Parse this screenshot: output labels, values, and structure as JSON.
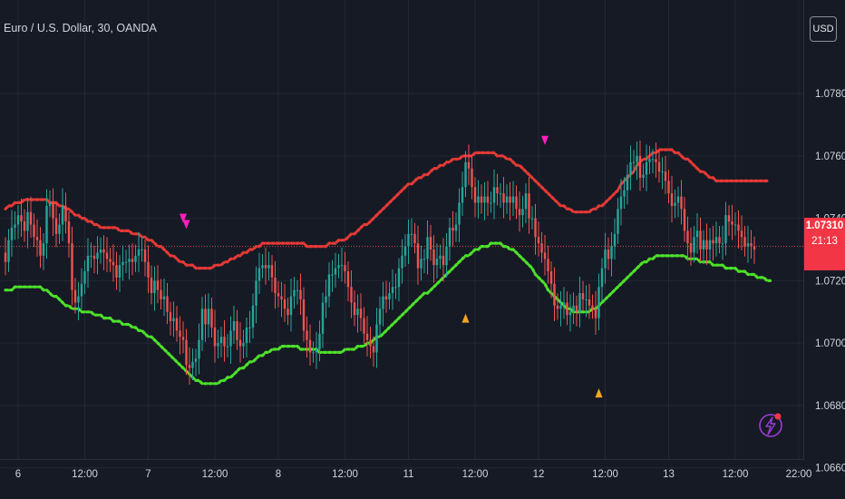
{
  "header": {
    "symbol_title": "Euro / U.S. Dollar, 30, OANDA"
  },
  "currency_button": {
    "label": "USD"
  },
  "price_tag": {
    "price": "1.07310",
    "countdown": "21:13",
    "color": "#f23645"
  },
  "colors": {
    "background": "#161a25",
    "grid": "#232733",
    "up_candle": "#26a69a",
    "down_candle": "#ef5350",
    "upper_band": "#e53935",
    "lower_band": "#4ce02a",
    "buy_signal": "#f5a623",
    "sell_signal": "#ff1fbf",
    "axis_text": "#d1d4dc"
  },
  "icons": {
    "logo": "lightning-bolt-icon"
  },
  "chart_data": {
    "type": "candlestick",
    "title": "Euro / U.S. Dollar, 30, OANDA",
    "ylim": [
      1.065,
      1.081
    ],
    "y_ticks": [
      "1.07800",
      "1.07600",
      "1.07400",
      "1.07200",
      "1.07000",
      "1.06800",
      "1.06600"
    ],
    "y_tick_values": [
      1.078,
      1.076,
      1.074,
      1.072,
      1.07,
      1.068,
      1.066
    ],
    "x_ticks": [
      "6",
      "12:00",
      "7",
      "12:00",
      "8",
      "12:00",
      "11",
      "12:00",
      "12",
      "12:00",
      "13",
      "12:00",
      "22:00"
    ],
    "x_tick_idx": [
      4,
      25,
      45,
      66,
      86,
      107,
      127,
      148,
      168,
      189,
      209,
      230,
      250
    ],
    "grid": true,
    "last_price": 1.0731,
    "close": [
      1.0726,
      1.0733,
      1.0737,
      1.0738,
      1.0741,
      1.0739,
      1.0736,
      1.0742,
      1.0738,
      1.0734,
      1.0733,
      1.0728,
      1.0732,
      1.0744,
      1.0745,
      1.074,
      1.0735,
      1.0738,
      1.0744,
      1.0739,
      1.0732,
      1.0717,
      1.0713,
      1.0715,
      1.0719,
      1.0723,
      1.0728,
      1.0728,
      1.0727,
      1.0729,
      1.073,
      1.0729,
      1.0727,
      1.0726,
      1.0725,
      1.0721,
      1.0725,
      1.0726,
      1.0726,
      1.0727,
      1.0726,
      1.0728,
      1.073,
      1.073,
      1.0726,
      1.0721,
      1.0716,
      1.072,
      1.0717,
      1.0714,
      1.0715,
      1.071,
      1.0707,
      1.0708,
      1.0704,
      1.0702,
      1.0701,
      1.0693,
      1.0692,
      1.0694,
      1.0695,
      1.0701,
      1.0711,
      1.0706,
      1.0711,
      1.0705,
      1.0699,
      1.07,
      1.0702,
      1.0699,
      1.0699,
      1.0704,
      1.0707,
      1.0701,
      1.0699,
      1.07,
      1.0705,
      1.0705,
      1.0712,
      1.072,
      1.0724,
      1.0725,
      1.0724,
      1.0725,
      1.0721,
      1.0716,
      1.0715,
      1.0714,
      1.0711,
      1.0709,
      1.0715,
      1.0717,
      1.0717,
      1.0714,
      1.0704,
      1.0701,
      1.0697,
      1.0697,
      1.0698,
      1.0703,
      1.0713,
      1.0715,
      1.0722,
      1.0722,
      1.0724,
      1.0725,
      1.0725,
      1.0723,
      1.0718,
      1.0713,
      1.0709,
      1.0711,
      1.0708,
      1.0703,
      1.0701,
      1.0699,
      1.0697,
      1.0706,
      1.0711,
      1.0715,
      1.0714,
      1.0716,
      1.0718,
      1.0718,
      1.0724,
      1.0728,
      1.0731,
      1.0735,
      1.0735,
      1.0732,
      1.0724,
      1.0727,
      1.0727,
      1.0734,
      1.073,
      1.0725,
      1.0727,
      1.0728,
      1.0725,
      1.0731,
      1.0737,
      1.0736,
      1.0738,
      1.0745,
      1.075,
      1.0758,
      1.0756,
      1.075,
      1.0745,
      1.0747,
      1.0745,
      1.0747,
      1.0745,
      1.0745,
      1.075,
      1.0748,
      1.0748,
      1.0745,
      1.0747,
      1.0745,
      1.0747,
      1.0743,
      1.0741,
      1.0743,
      1.0748,
      1.074,
      1.074,
      1.0734,
      1.0732,
      1.0729,
      1.0727,
      1.0723,
      1.0719,
      1.0712,
      1.0711,
      1.0712,
      1.0713,
      1.0709,
      1.071,
      1.0712,
      1.071,
      1.0716,
      1.0714,
      1.0714,
      1.0712,
      1.0711,
      1.0708,
      1.0718,
      1.0724,
      1.073,
      1.0727,
      1.0731,
      1.0735,
      1.0743,
      1.0747,
      1.0749,
      1.0754,
      1.0758,
      1.0758,
      1.076,
      1.0753,
      1.0754,
      1.0758,
      1.0759,
      1.0759,
      1.0758,
      1.0755,
      1.0755,
      1.0752,
      1.0748,
      1.0744,
      1.0745,
      1.0747,
      1.0743,
      1.0736,
      1.0732,
      1.0729,
      1.0734,
      1.0736,
      1.073,
      1.0733,
      1.073,
      1.0733,
      1.0732,
      1.0734,
      1.0732,
      1.0732,
      1.0741,
      1.0739,
      1.0738,
      1.0738,
      1.0736,
      1.0734,
      1.0731,
      1.0732,
      1.0731,
      1.073
    ],
    "upper_band": [
      1.0743,
      1.0744,
      1.0744,
      1.0745,
      1.0745,
      1.0745,
      1.0746,
      1.0746,
      1.0746,
      1.0746,
      1.0746,
      1.0746,
      1.0746,
      1.0746,
      1.0745,
      1.0745,
      1.0745,
      1.0744,
      1.0744,
      1.0743,
      1.0743,
      1.0742,
      1.0741,
      1.0741,
      1.074,
      1.074,
      1.0739,
      1.0739,
      1.0738,
      1.0738,
      1.0737,
      1.0737,
      1.0737,
      1.0737,
      1.0737,
      1.0737,
      1.0736,
      1.0736,
      1.0736,
      1.0736,
      1.0735,
      1.0735,
      1.0735,
      1.0734,
      1.0734,
      1.0733,
      1.0733,
      1.0732,
      1.0731,
      1.0731,
      1.073,
      1.0729,
      1.0728,
      1.0728,
      1.0727,
      1.0726,
      1.0726,
      1.0725,
      1.0725,
      1.0725,
      1.0724,
      1.0724,
      1.0724,
      1.0724,
      1.0724,
      1.0724,
      1.0725,
      1.0725,
      1.0725,
      1.0726,
      1.0726,
      1.0727,
      1.0727,
      1.0728,
      1.0728,
      1.0729,
      1.0729,
      1.073,
      1.073,
      1.0731,
      1.0731,
      1.0732,
      1.0732,
      1.0732,
      1.0732,
      1.0732,
      1.0732,
      1.0732,
      1.0732,
      1.0732,
      1.0732,
      1.0732,
      1.0732,
      1.0732,
      1.0732,
      1.0731,
      1.0731,
      1.0731,
      1.0731,
      1.0731,
      1.0731,
      1.0731,
      1.0732,
      1.0732,
      1.0732,
      1.0733,
      1.0733,
      1.0733,
      1.0734,
      1.0735,
      1.0735,
      1.0736,
      1.0737,
      1.0738,
      1.0738,
      1.0739,
      1.074,
      1.0741,
      1.0742,
      1.0743,
      1.0744,
      1.0745,
      1.0746,
      1.0747,
      1.0748,
      1.0749,
      1.075,
      1.0751,
      1.0751,
      1.0752,
      1.0753,
      1.0753,
      1.0754,
      1.0754,
      1.0755,
      1.0756,
      1.0756,
      1.0757,
      1.0757,
      1.0758,
      1.0758,
      1.0759,
      1.0759,
      1.0759,
      1.076,
      1.076,
      1.076,
      1.076,
      1.0761,
      1.0761,
      1.0761,
      1.0761,
      1.0761,
      1.0761,
      1.0761,
      1.076,
      1.076,
      1.076,
      1.0759,
      1.0759,
      1.0758,
      1.0757,
      1.0757,
      1.0756,
      1.0755,
      1.0754,
      1.0753,
      1.0752,
      1.0751,
      1.075,
      1.0749,
      1.0748,
      1.0747,
      1.0746,
      1.0745,
      1.0744,
      1.0744,
      1.0743,
      1.0743,
      1.0742,
      1.0742,
      1.0742,
      1.0742,
      1.0742,
      1.0742,
      1.0743,
      1.0743,
      1.0744,
      1.0744,
      1.0745,
      1.0746,
      1.0747,
      1.0748,
      1.0749,
      1.0751,
      1.0752,
      1.0753,
      1.0754,
      1.0755,
      1.0757,
      1.0758,
      1.0759,
      1.0759,
      1.076,
      1.0761,
      1.0761,
      1.0762,
      1.0762,
      1.0762,
      1.0762,
      1.0762,
      1.0761,
      1.0761,
      1.076,
      1.0759,
      1.0759,
      1.0758,
      1.0757,
      1.0756,
      1.0755,
      1.0755,
      1.0754,
      1.0753,
      1.0753,
      1.0752,
      1.0752,
      1.0752,
      1.0752,
      1.0752,
      1.0752,
      1.0752,
      1.0752,
      1.0752,
      1.0752,
      1.0752,
      1.0752,
      1.0752,
      1.0752,
      1.0752,
      1.0752,
      1.0752
    ],
    "lower_band": [
      1.0717,
      1.0717,
      1.0717,
      1.0718,
      1.0718,
      1.0718,
      1.0718,
      1.0718,
      1.0718,
      1.0718,
      1.0718,
      1.0718,
      1.0717,
      1.0717,
      1.0716,
      1.0715,
      1.0715,
      1.0714,
      1.0713,
      1.0712,
      1.0712,
      1.0711,
      1.0711,
      1.0711,
      1.071,
      1.071,
      1.071,
      1.071,
      1.0709,
      1.0709,
      1.0709,
      1.0708,
      1.0708,
      1.0708,
      1.0707,
      1.0707,
      1.0707,
      1.0706,
      1.0706,
      1.0706,
      1.0705,
      1.0705,
      1.0704,
      1.0704,
      1.0703,
      1.0702,
      1.0702,
      1.0701,
      1.07,
      1.0699,
      1.0698,
      1.0697,
      1.0696,
      1.0695,
      1.0694,
      1.0693,
      1.0692,
      1.0691,
      1.069,
      1.0689,
      1.0688,
      1.0688,
      1.0687,
      1.0687,
      1.0687,
      1.0687,
      1.0687,
      1.0687,
      1.0688,
      1.0688,
      1.0689,
      1.0689,
      1.069,
      1.0691,
      1.0692,
      1.0692,
      1.0693,
      1.0694,
      1.0694,
      1.0695,
      1.0696,
      1.0696,
      1.0697,
      1.0697,
      1.0698,
      1.0698,
      1.0698,
      1.0699,
      1.0699,
      1.0699,
      1.0699,
      1.0699,
      1.0699,
      1.0698,
      1.0698,
      1.0698,
      1.0698,
      1.0698,
      1.0698,
      1.0697,
      1.0697,
      1.0697,
      1.0697,
      1.0697,
      1.0697,
      1.0697,
      1.0697,
      1.0698,
      1.0698,
      1.0698,
      1.0698,
      1.0699,
      1.0699,
      1.0699,
      1.07,
      1.07,
      1.0701,
      1.0702,
      1.0702,
      1.0703,
      1.0704,
      1.0705,
      1.0706,
      1.0707,
      1.0708,
      1.0709,
      1.071,
      1.0711,
      1.0712,
      1.0713,
      1.0714,
      1.0715,
      1.0716,
      1.0716,
      1.0717,
      1.0718,
      1.0719,
      1.072,
      1.0721,
      1.0722,
      1.0723,
      1.0724,
      1.0725,
      1.0726,
      1.0727,
      1.0728,
      1.0728,
      1.0729,
      1.073,
      1.073,
      1.0731,
      1.0731,
      1.0731,
      1.0732,
      1.0732,
      1.0732,
      1.0732,
      1.0731,
      1.0731,
      1.073,
      1.073,
      1.0729,
      1.0728,
      1.0727,
      1.0726,
      1.0725,
      1.0724,
      1.0722,
      1.0721,
      1.072,
      1.0719,
      1.0717,
      1.0716,
      1.0715,
      1.0714,
      1.0713,
      1.0712,
      1.0711,
      1.0711,
      1.071,
      1.071,
      1.071,
      1.071,
      1.071,
      1.071,
      1.0711,
      1.0711,
      1.0712,
      1.0713,
      1.0714,
      1.0715,
      1.0716,
      1.0717,
      1.0718,
      1.0719,
      1.072,
      1.0721,
      1.0722,
      1.0723,
      1.0724,
      1.0725,
      1.0726,
      1.0726,
      1.0727,
      1.0727,
      1.0728,
      1.0728,
      1.0728,
      1.0728,
      1.0728,
      1.0728,
      1.0728,
      1.0728,
      1.0728,
      1.0728,
      1.0727,
      1.0727,
      1.0727,
      1.0727,
      1.0726,
      1.0726,
      1.0726,
      1.0726,
      1.0725,
      1.0725,
      1.0725,
      1.0725,
      1.0724,
      1.0724,
      1.0724,
      1.0724,
      1.0723,
      1.0723,
      1.0723,
      1.0722,
      1.0722,
      1.0722,
      1.0721,
      1.0721,
      1.0721,
      1.072,
      1.072
    ],
    "buy_signals": [
      {
        "idx": 145,
        "price": 1.0708
      },
      {
        "idx": 187,
        "price": 1.0684
      }
    ],
    "sell_signals": [
      {
        "idx": 56,
        "price": 1.074
      },
      {
        "idx": 57,
        "price": 1.0738
      },
      {
        "idx": 170,
        "price": 1.0765
      }
    ]
  }
}
